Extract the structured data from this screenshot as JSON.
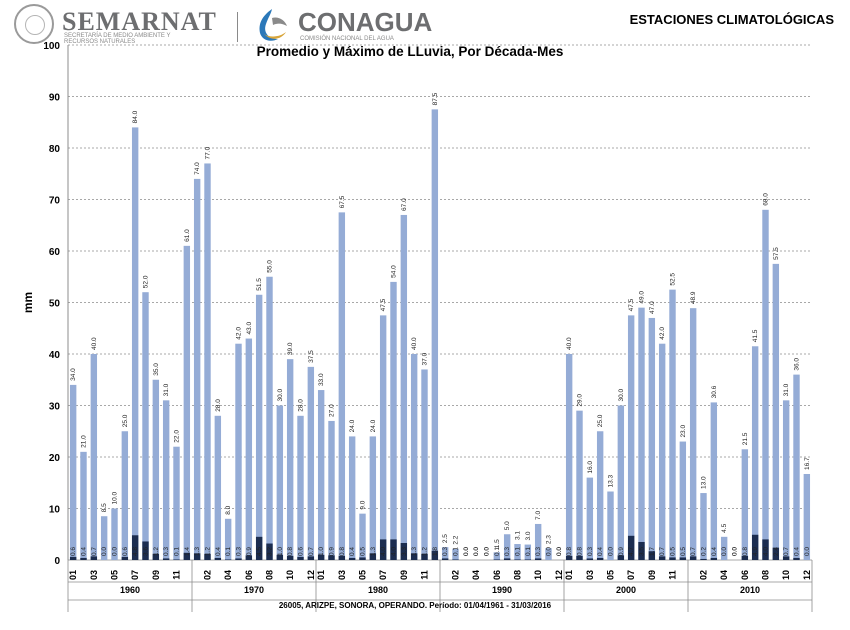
{
  "header": {
    "semarnat": "SEMARNAT",
    "semarnat_sub": "SECRETARÍA DE MEDIO AMBIENTE Y RECURSOS NATURALES",
    "conagua": "CONAGUA",
    "conagua_sub": "COMISIÓN NACIONAL DEL AGUA",
    "estaciones": "ESTACIONES CLIMATOLÓGICAS"
  },
  "footer": "26005, ARIZPE, SONORA, OPERANDO. Período: 01/04/1961 - 31/03/2016",
  "chart_data": {
    "type": "bar",
    "title": "Promedio y Máximo de LLuvia, Por Década-Mes",
    "ylabel": "mm",
    "xlabel": "",
    "ylim": [
      0,
      100
    ],
    "yticks": [
      0,
      10,
      20,
      30,
      40,
      50,
      60,
      70,
      80,
      90,
      100
    ],
    "grid": true,
    "decades": [
      "1960",
      "1970",
      "1980",
      "1990",
      "2000",
      "2010"
    ],
    "month_labels": [
      "01",
      "02",
      "03",
      "04",
      "05",
      "06",
      "07",
      "08",
      "09",
      "10",
      "11",
      "12"
    ],
    "shown_month_labels": [
      "01",
      "",
      "03",
      "",
      "05",
      "",
      "07",
      "",
      "09",
      "",
      "11",
      ""
    ],
    "shown_month_labels_alt": [
      "",
      "02",
      "",
      "04",
      "",
      "06",
      "",
      "08",
      "",
      "10",
      "",
      "12"
    ],
    "series": [
      {
        "name": "Máximo",
        "color": "#95acd6",
        "values": [
          [
            34.0,
            21.0,
            40.0,
            8.5,
            10.0,
            25.0,
            84.0,
            52.0,
            35.0,
            31.0,
            22.0,
            61.0
          ],
          [
            74.0,
            77.0,
            28.0,
            8.0,
            42.0,
            43.0,
            51.5,
            55.0,
            30.0,
            39.0,
            28.0,
            37.5
          ],
          [
            33.0,
            27.0,
            67.5,
            24.0,
            9.0,
            24.0,
            47.5,
            54.0,
            67.0,
            40.0,
            37.0,
            87.5
          ],
          [
            2.5,
            2.2,
            0.0,
            0.0,
            0.0,
            1.5,
            5.0,
            3.1,
            3.0,
            7.0,
            2.3,
            0.0
          ],
          [
            40.0,
            29.0,
            16.0,
            25.0,
            13.3,
            30.0,
            47.5,
            49.0,
            47.0,
            42.0,
            52.5,
            23.0
          ],
          [
            48.9,
            13.0,
            30.6,
            4.5,
            0.0,
            21.5,
            41.5,
            68.0,
            57.5,
            31.0,
            36.0,
            16.7
          ]
        ]
      },
      {
        "name": "Promedio",
        "color": "#1c2d50",
        "values": [
          [
            0.6,
            0.4,
            0.7,
            0.0,
            0.0,
            0.6,
            4.8,
            3.6,
            1.2,
            0.3,
            0.1,
            1.4
          ],
          [
            1.3,
            1.2,
            0.4,
            0.1,
            0.3,
            0.9,
            4.5,
            3.2,
            1.0,
            0.8,
            0.6,
            0.7
          ],
          [
            1.0,
            0.9,
            0.8,
            0.4,
            0.5,
            1.3,
            4.0,
            4.0,
            3.3,
            1.3,
            1.2,
            1.8
          ],
          [
            0.3,
            0.1,
            0.0,
            0.0,
            0.0,
            0.1,
            0.3,
            0.1,
            0.1,
            0.3,
            0.0,
            0.0
          ],
          [
            0.8,
            0.8,
            0.3,
            0.4,
            0.0,
            0.9,
            4.7,
            3.5,
            1.7,
            0.7,
            0.5,
            0.5
          ],
          [
            0.7,
            0.2,
            0.4,
            0.0,
            0.0,
            0.8,
            4.9,
            4.0,
            2.4,
            0.7,
            0.4,
            0.0
          ]
        ]
      }
    ]
  }
}
